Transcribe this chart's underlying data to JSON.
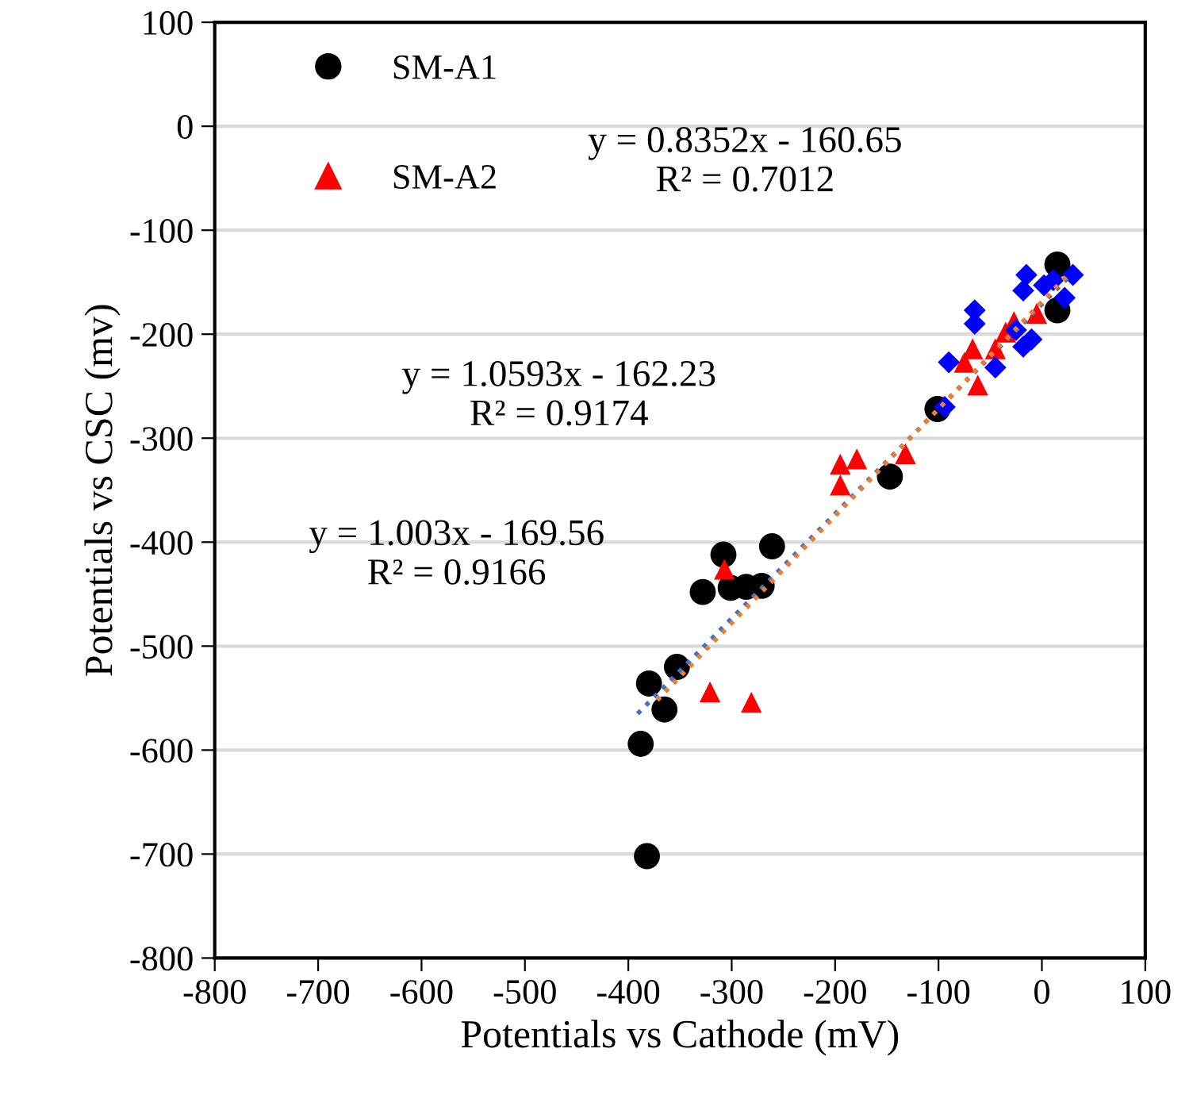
{
  "chart_data": {
    "type": "scatter",
    "xlabel": "Potentials vs Cathode (mV)",
    "ylabel": "Potentials vs CSC (mv)",
    "xlim": [
      -800,
      100
    ],
    "ylim": [
      -800,
      100
    ],
    "xticks": [
      -800,
      -700,
      -600,
      -500,
      -400,
      -300,
      -200,
      -100,
      0,
      100
    ],
    "yticks": [
      -800,
      -700,
      -600,
      -500,
      -400,
      -300,
      -200,
      -100,
      0,
      100
    ],
    "grid": "y",
    "legend": "top left",
    "series": [
      {
        "name": "SM-A1",
        "color": "#000000",
        "marker": "circle",
        "x": [
          -308,
          -261,
          -328,
          -301,
          -286,
          -271,
          -353,
          -380,
          -365,
          -388,
          -382,
          -147,
          -101,
          15,
          15
        ],
        "values": [
          -412,
          -404,
          -448,
          -444,
          -443,
          -442,
          -520,
          -536,
          -561,
          -594,
          -702,
          -337,
          -272,
          -133,
          -177
        ]
      },
      {
        "name": "SM-A2",
        "color": "#ff0000",
        "marker": "triangle",
        "x": [
          -307,
          -321,
          -281,
          -179,
          -195,
          -195,
          -132,
          -62,
          -67,
          -75,
          -45,
          -35,
          -27,
          -5
        ],
        "values": [
          -426,
          -544,
          -554,
          -320,
          -325,
          -345,
          -315,
          -249,
          -214,
          -227,
          -214,
          -198,
          -188,
          -180
        ]
      },
      {
        "color": "#0000ff",
        "marker": "diamond",
        "x": [
          -90,
          -94,
          -65,
          -65,
          -45,
          -25,
          -18,
          -15,
          -18,
          2,
          30,
          22,
          11,
          -10
        ],
        "values": [
          -227,
          -270,
          -177,
          -190,
          -232,
          -196,
          -212,
          -143,
          -158,
          -153,
          -143,
          -165,
          -148,
          -205
        ]
      },
      {
        "type": "line",
        "color": "#4472c4",
        "line_style": "dotted",
        "marker": "none",
        "x": [
          -391,
          28
        ],
        "values": [
          -565,
          -143
        ]
      },
      {
        "type": "line",
        "color": "#ed7d31",
        "line_style": "dotted",
        "marker": "none",
        "x": [
          -372,
          28
        ],
        "values": [
          -552,
          -140
        ]
      }
    ],
    "annotations": [
      "y = 0.8352x - 160.65\nR² = 0.7012",
      "y = 1.0593x - 162.23\nR² = 0.9174",
      "y = 1.003x - 169.56\nR² = 0.9166"
    ]
  }
}
